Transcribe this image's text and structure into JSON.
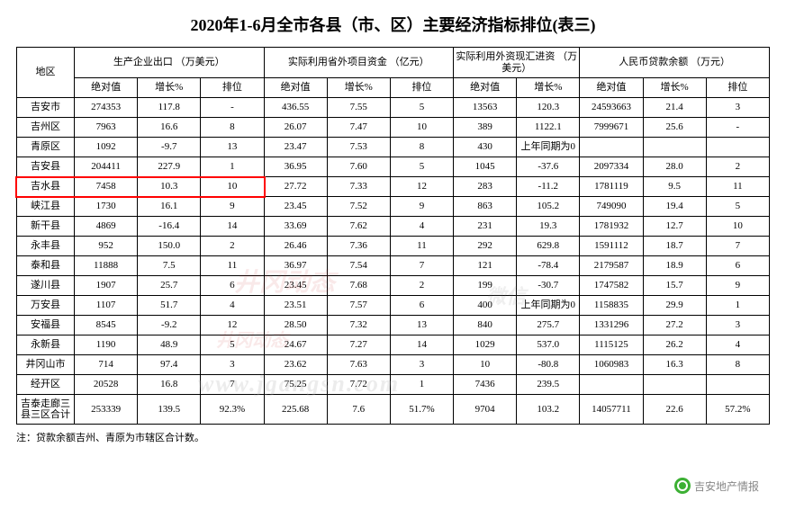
{
  "title": "2020年1-6月全市各县（市、区）主要经济指标排位(表三)",
  "footnote": "注：贷款余额吉州、青原为市辖区合计数。",
  "source_label": "吉安地产情报",
  "region_header": "地区",
  "groups": [
    {
      "label": "生产企业出口\n（万美元）",
      "cols": [
        "绝对值",
        "增长%",
        "排位"
      ]
    },
    {
      "label": "实际利用省外项目资金\n（亿元）",
      "cols": [
        "绝对值",
        "增长%",
        "排位"
      ]
    },
    {
      "label": "实际利用外资现汇进资\n（万美元）",
      "cols": [
        "绝对值",
        "增长%"
      ]
    },
    {
      "label": "人民币贷款余额\n（万元）",
      "cols": [
        "绝对值",
        "增长%",
        "排位"
      ]
    }
  ],
  "highlight_row_index": 5,
  "highlight_col_count": 4,
  "colors": {
    "border": "#000000",
    "highlight": "#ff0000",
    "background": "#ffffff",
    "watermark_red": "rgba(200,40,40,0.10)",
    "watermark_grey": "rgba(180,180,180,0.25)"
  },
  "rows": [
    {
      "region": "吉安市",
      "c": [
        "274353",
        "117.8",
        "-",
        "436.55",
        "7.55",
        "5",
        "13563",
        "120.3",
        "24593663",
        "21.4",
        "3"
      ]
    },
    {
      "region": "吉州区",
      "c": [
        "7963",
        "16.6",
        "8",
        "26.07",
        "7.47",
        "10",
        "389",
        "1122.1",
        "7999671",
        "25.6",
        "-"
      ]
    },
    {
      "region": "青原区",
      "c": [
        "1092",
        "-9.7",
        "13",
        "23.47",
        "7.53",
        "8",
        "430",
        "上年同期为0",
        "",
        "",
        ""
      ]
    },
    {
      "region": "吉安县",
      "c": [
        "204411",
        "227.9",
        "1",
        "36.95",
        "7.60",
        "5",
        "1045",
        "-37.6",
        "2097334",
        "28.0",
        "2"
      ]
    },
    {
      "region": "吉水县",
      "c": [
        "7458",
        "10.3",
        "10",
        "27.72",
        "7.33",
        "12",
        "283",
        "-11.2",
        "1781119",
        "9.5",
        "11"
      ]
    },
    {
      "region": "峡江县",
      "c": [
        "1730",
        "16.1",
        "9",
        "23.45",
        "7.52",
        "9",
        "863",
        "105.2",
        "749090",
        "19.4",
        "5"
      ]
    },
    {
      "region": "新干县",
      "c": [
        "4869",
        "-16.4",
        "14",
        "33.69",
        "7.62",
        "4",
        "231",
        "19.3",
        "1781932",
        "12.7",
        "10"
      ]
    },
    {
      "region": "永丰县",
      "c": [
        "952",
        "150.0",
        "2",
        "26.46",
        "7.36",
        "11",
        "292",
        "629.8",
        "1591112",
        "18.7",
        "7"
      ]
    },
    {
      "region": "泰和县",
      "c": [
        "11888",
        "7.5",
        "11",
        "36.97",
        "7.54",
        "7",
        "121",
        "-78.4",
        "2179587",
        "18.9",
        "6"
      ]
    },
    {
      "region": "遂川县",
      "c": [
        "1907",
        "25.7",
        "6",
        "23.45",
        "7.68",
        "2",
        "199",
        "-30.7",
        "1747582",
        "15.7",
        "9"
      ]
    },
    {
      "region": "万安县",
      "c": [
        "1107",
        "51.7",
        "4",
        "23.51",
        "7.57",
        "6",
        "400",
        "上年同期为0",
        "1158835",
        "29.9",
        "1"
      ]
    },
    {
      "region": "安福县",
      "c": [
        "8545",
        "-9.2",
        "12",
        "28.50",
        "7.32",
        "13",
        "840",
        "275.7",
        "1331296",
        "27.2",
        "3"
      ]
    },
    {
      "region": "永新县",
      "c": [
        "1190",
        "48.9",
        "5",
        "24.67",
        "7.27",
        "14",
        "1029",
        "537.0",
        "1115125",
        "26.2",
        "4"
      ]
    },
    {
      "region": "井冈山市",
      "c": [
        "714",
        "97.4",
        "3",
        "23.62",
        "7.63",
        "3",
        "10",
        "-80.8",
        "1060983",
        "16.3",
        "8"
      ]
    },
    {
      "region": "经开区",
      "c": [
        "20528",
        "16.8",
        "7",
        "75.25",
        "7.72",
        "1",
        "7436",
        "239.5",
        "",
        "",
        ""
      ]
    },
    {
      "region": "吉泰走廊三县三区合计",
      "c": [
        "253339",
        "139.5",
        "92.3%",
        "225.68",
        "7.6",
        "51.7%",
        "9704",
        "103.2",
        "14057711",
        "22.6",
        "57.2%"
      ]
    }
  ]
}
